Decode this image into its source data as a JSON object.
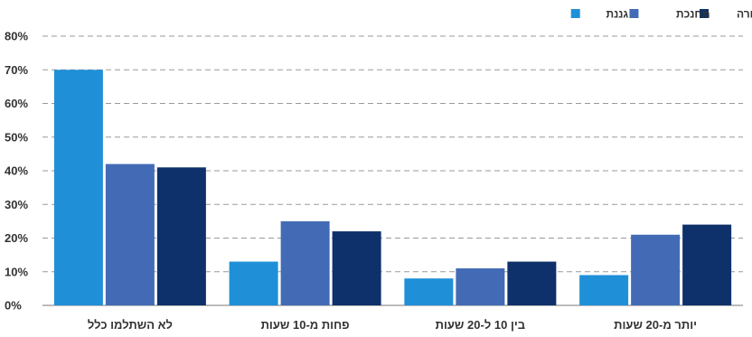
{
  "chart_data": {
    "type": "bar",
    "categories": [
      "לא השתלמו כלל",
      "פחות מ-10 שעות",
      "בין 10 ל-20 שעות",
      "יותר מ-20 שעות"
    ],
    "series": [
      {
        "name": "גננת",
        "color": "#1f90d8",
        "values": [
          70,
          13,
          8,
          9
        ]
      },
      {
        "name": "מחנכת",
        "color": "#436bb5",
        "values": [
          42,
          25,
          11,
          21
        ]
      },
      {
        "name": "מורה",
        "color": "#0e316b",
        "values": [
          41,
          22,
          13,
          24
        ]
      }
    ],
    "ylim": [
      0,
      80
    ],
    "yticks": [
      "0%",
      "10%",
      "20%",
      "30%",
      "40%",
      "50%",
      "60%",
      "70%",
      "80%"
    ],
    "grid": true,
    "legend_position": "top-right"
  }
}
